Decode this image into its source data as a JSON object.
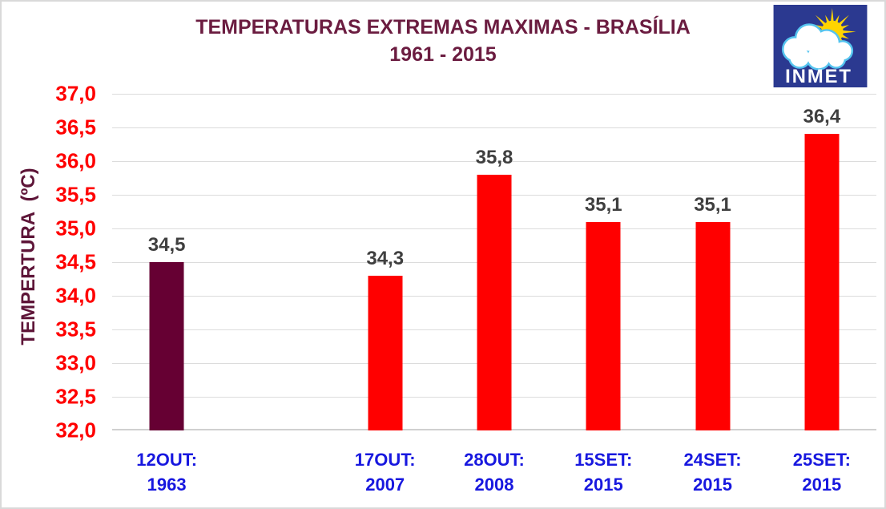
{
  "logo": {
    "label": "INMET",
    "bg_color": "#2B3990",
    "sun_color": "#FFD400",
    "cloud_outline_color": "#55C4EF",
    "cloud_fill_color": "#FFFFFF"
  },
  "colors": {
    "title": "#6B1C40",
    "y_axis_title": "#5E1538",
    "y_tick": "#FF0000",
    "x_label": "#1818DF",
    "value_label": "#3F3F3F",
    "bar_red": "#FF0000",
    "bar_maroon": "#660033",
    "gridline": "#DCDCDC",
    "axis_line": "#D0D0D0",
    "frame_border": "#D9D9D9"
  },
  "chart_data": {
    "type": "bar",
    "title": "TEMPERATURAS EXTREMAS MAXIMAS - BRASÍLIA",
    "subtitle": "1961 - 2015",
    "ylabel": "TEMPERTURA  (ºC)",
    "xlabel": "",
    "ylim": [
      32.0,
      37.0
    ],
    "ytick_step": 0.5,
    "grid": true,
    "legend_position": "none",
    "decimal_separator": ",",
    "yticks": [
      {
        "value": 37.0,
        "label": "37,0"
      },
      {
        "value": 36.5,
        "label": "36,5"
      },
      {
        "value": 36.0,
        "label": "36,0"
      },
      {
        "value": 35.5,
        "label": "35,5"
      },
      {
        "value": 35.0,
        "label": "35,0"
      },
      {
        "value": 34.5,
        "label": "34,5"
      },
      {
        "value": 34.0,
        "label": "34,0"
      },
      {
        "value": 33.5,
        "label": "33,5"
      },
      {
        "value": 33.0,
        "label": "33,0"
      },
      {
        "value": 32.5,
        "label": "32,5"
      },
      {
        "value": 32.0,
        "label": "32,0"
      }
    ],
    "bars": [
      {
        "category_line1": "12OUT:",
        "category_line2": "1963",
        "value": 34.5,
        "value_label": "34,5",
        "color": "#660033",
        "slot": 0
      },
      {
        "category_line1": "17OUT:",
        "category_line2": "2007",
        "value": 34.3,
        "value_label": "34,3",
        "color": "#FF0000",
        "slot": 2
      },
      {
        "category_line1": "28OUT:",
        "category_line2": "2008",
        "value": 35.8,
        "value_label": "35,8",
        "color": "#FF0000",
        "slot": 3
      },
      {
        "category_line1": "15SET:",
        "category_line2": "2015",
        "value": 35.1,
        "value_label": "35,1",
        "color": "#FF0000",
        "slot": 4
      },
      {
        "category_line1": "24SET:",
        "category_line2": "2015",
        "value": 35.1,
        "value_label": "35,1",
        "color": "#FF0000",
        "slot": 5
      },
      {
        "category_line1": "25SET:",
        "category_line2": "2015",
        "value": 36.4,
        "value_label": "36,4",
        "color": "#FF0000",
        "slot": 6
      }
    ],
    "layout": {
      "total_slots": 7,
      "empty_slot_index": 1
    }
  }
}
